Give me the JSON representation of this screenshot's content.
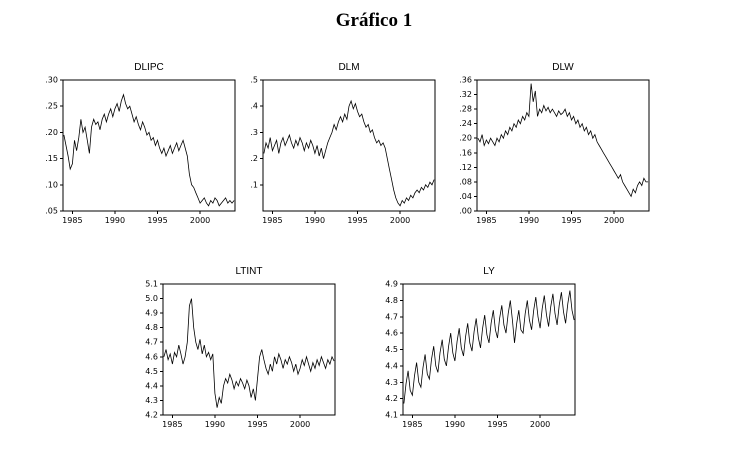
{
  "page": {
    "title": "Gráfico 1"
  },
  "chart_data": [
    {
      "id": "dlipc",
      "type": "line",
      "title": "DLIPC",
      "xlabel": "",
      "ylabel": "",
      "x_start": 1984.0,
      "x_step": 0.25,
      "xlim": [
        1983.9,
        2004.1
      ],
      "ylim": [
        0.05,
        0.3
      ],
      "ytick_vals": [
        0.05,
        0.1,
        0.15,
        0.2,
        0.25,
        0.3
      ],
      "ytick_labels": [
        ".05",
        ".10",
        ".15",
        ".20",
        ".25",
        ".30"
      ],
      "xtick_vals": [
        1985,
        1990,
        1995,
        2000
      ],
      "xtick_labels": [
        "1985",
        "1990",
        "1995",
        "2000"
      ],
      "values": [
        0.195,
        0.175,
        0.155,
        0.13,
        0.14,
        0.185,
        0.165,
        0.19,
        0.225,
        0.2,
        0.21,
        0.185,
        0.16,
        0.21,
        0.225,
        0.215,
        0.22,
        0.205,
        0.225,
        0.235,
        0.22,
        0.235,
        0.245,
        0.23,
        0.245,
        0.255,
        0.24,
        0.26,
        0.272,
        0.255,
        0.245,
        0.25,
        0.235,
        0.22,
        0.23,
        0.215,
        0.205,
        0.22,
        0.21,
        0.195,
        0.2,
        0.185,
        0.19,
        0.175,
        0.185,
        0.17,
        0.16,
        0.17,
        0.155,
        0.165,
        0.175,
        0.16,
        0.17,
        0.18,
        0.165,
        0.175,
        0.185,
        0.17,
        0.155,
        0.12,
        0.1,
        0.095,
        0.085,
        0.075,
        0.065,
        0.07,
        0.075,
        0.065,
        0.06,
        0.07,
        0.065,
        0.075,
        0.07,
        0.06,
        0.065,
        0.07,
        0.075,
        0.065,
        0.07,
        0.065,
        0.07
      ]
    },
    {
      "id": "dlm",
      "type": "line",
      "title": "DLM",
      "xlabel": "",
      "ylabel": "",
      "x_start": 1984.0,
      "x_step": 0.25,
      "xlim": [
        1983.9,
        2004.1
      ],
      "ylim": [
        0.0,
        0.5
      ],
      "ytick_vals": [
        0.1,
        0.2,
        0.3,
        0.4,
        0.5
      ],
      "ytick_labels": [
        ".1",
        ".2",
        ".3",
        ".4",
        ".5"
      ],
      "xtick_vals": [
        1985,
        1990,
        1995,
        2000
      ],
      "xtick_labels": [
        "1985",
        "1990",
        "1995",
        "2000"
      ],
      "values": [
        0.22,
        0.26,
        0.24,
        0.28,
        0.23,
        0.25,
        0.27,
        0.22,
        0.26,
        0.28,
        0.25,
        0.27,
        0.29,
        0.26,
        0.24,
        0.27,
        0.25,
        0.28,
        0.26,
        0.23,
        0.26,
        0.24,
        0.27,
        0.25,
        0.22,
        0.25,
        0.21,
        0.24,
        0.2,
        0.23,
        0.26,
        0.28,
        0.3,
        0.33,
        0.31,
        0.34,
        0.36,
        0.34,
        0.37,
        0.35,
        0.4,
        0.42,
        0.39,
        0.41,
        0.38,
        0.36,
        0.37,
        0.34,
        0.32,
        0.33,
        0.3,
        0.31,
        0.28,
        0.26,
        0.27,
        0.25,
        0.26,
        0.24,
        0.2,
        0.16,
        0.12,
        0.08,
        0.05,
        0.03,
        0.02,
        0.04,
        0.03,
        0.05,
        0.04,
        0.06,
        0.05,
        0.07,
        0.08,
        0.07,
        0.09,
        0.08,
        0.1,
        0.09,
        0.11,
        0.1,
        0.12
      ]
    },
    {
      "id": "dlw",
      "type": "line",
      "title": "DLW",
      "xlabel": "",
      "ylabel": "",
      "x_start": 1984.0,
      "x_step": 0.25,
      "xlim": [
        1983.9,
        2004.1
      ],
      "ylim": [
        0.0,
        0.36
      ],
      "ytick_vals": [
        0.0,
        0.04,
        0.08,
        0.12,
        0.16,
        0.2,
        0.24,
        0.28,
        0.32,
        0.36
      ],
      "ytick_labels": [
        ".00",
        ".04",
        ".08",
        ".12",
        ".16",
        ".20",
        ".24",
        ".28",
        ".32",
        ".36"
      ],
      "xtick_vals": [
        1985,
        1990,
        1995,
        2000
      ],
      "xtick_labels": [
        "1985",
        "1990",
        "1995",
        "2000"
      ],
      "values": [
        0.2,
        0.19,
        0.21,
        0.18,
        0.195,
        0.185,
        0.2,
        0.19,
        0.18,
        0.2,
        0.19,
        0.21,
        0.2,
        0.22,
        0.21,
        0.23,
        0.22,
        0.24,
        0.23,
        0.25,
        0.24,
        0.26,
        0.25,
        0.27,
        0.26,
        0.35,
        0.3,
        0.33,
        0.26,
        0.28,
        0.27,
        0.29,
        0.275,
        0.285,
        0.27,
        0.28,
        0.27,
        0.26,
        0.275,
        0.265,
        0.27,
        0.28,
        0.26,
        0.27,
        0.25,
        0.26,
        0.24,
        0.25,
        0.23,
        0.24,
        0.22,
        0.23,
        0.21,
        0.22,
        0.2,
        0.21,
        0.19,
        0.18,
        0.17,
        0.16,
        0.15,
        0.14,
        0.13,
        0.12,
        0.11,
        0.1,
        0.09,
        0.1,
        0.08,
        0.07,
        0.06,
        0.05,
        0.04,
        0.06,
        0.05,
        0.07,
        0.08,
        0.07,
        0.09,
        0.08,
        0.08
      ]
    },
    {
      "id": "ltint",
      "type": "line",
      "title": "LTINT",
      "xlabel": "",
      "ylabel": "",
      "x_start": 1984.0,
      "x_step": 0.25,
      "xlim": [
        1983.9,
        2004.1
      ],
      "ylim": [
        4.2,
        5.1
      ],
      "ytick_vals": [
        4.2,
        4.3,
        4.4,
        4.5,
        4.6,
        4.7,
        4.8,
        4.9,
        5.0,
        5.1
      ],
      "ytick_labels": [
        "4.2",
        "4.3",
        "4.4",
        "4.5",
        "4.6",
        "4.7",
        "4.8",
        "4.9",
        "5.0",
        "5.1"
      ],
      "xtick_vals": [
        1985,
        1990,
        1995,
        2000
      ],
      "xtick_labels": [
        "1985",
        "1990",
        "1995",
        "2000"
      ],
      "values": [
        4.6,
        4.65,
        4.58,
        4.62,
        4.55,
        4.63,
        4.6,
        4.68,
        4.62,
        4.55,
        4.6,
        4.7,
        4.95,
        5.0,
        4.8,
        4.7,
        4.65,
        4.72,
        4.62,
        4.68,
        4.6,
        4.63,
        4.58,
        4.62,
        4.35,
        4.25,
        4.32,
        4.28,
        4.4,
        4.45,
        4.42,
        4.48,
        4.44,
        4.38,
        4.43,
        4.4,
        4.45,
        4.42,
        4.38,
        4.44,
        4.4,
        4.32,
        4.38,
        4.3,
        4.45,
        4.6,
        4.65,
        4.58,
        4.52,
        4.48,
        4.55,
        4.5,
        4.6,
        4.55,
        4.62,
        4.58,
        4.52,
        4.58,
        4.55,
        4.6,
        4.56,
        4.5,
        4.55,
        4.48,
        4.52,
        4.58,
        4.54,
        4.6,
        4.55,
        4.5,
        4.56,
        4.52,
        4.58,
        4.54,
        4.6,
        4.56,
        4.52,
        4.58,
        4.55,
        4.6,
        4.57
      ]
    },
    {
      "id": "ly",
      "type": "line",
      "title": "LY",
      "xlabel": "",
      "ylabel": "",
      "x_start": 1984.0,
      "x_step": 0.25,
      "xlim": [
        1983.9,
        2004.1
      ],
      "ylim": [
        4.1,
        4.9
      ],
      "ytick_vals": [
        4.1,
        4.2,
        4.3,
        4.4,
        4.5,
        4.6,
        4.7,
        4.8,
        4.9
      ],
      "ytick_labels": [
        "4.1",
        "4.2",
        "4.3",
        "4.4",
        "4.5",
        "4.6",
        "4.7",
        "4.8",
        "4.9"
      ],
      "xtick_vals": [
        1985,
        1990,
        1995,
        2000
      ],
      "xtick_labels": [
        "1985",
        "1990",
        "1995",
        "2000"
      ],
      "values": [
        4.17,
        4.29,
        4.37,
        4.25,
        4.22,
        4.34,
        4.42,
        4.3,
        4.27,
        4.39,
        4.47,
        4.35,
        4.32,
        4.44,
        4.52,
        4.4,
        4.36,
        4.48,
        4.56,
        4.44,
        4.4,
        4.52,
        4.6,
        4.48,
        4.43,
        4.55,
        4.63,
        4.51,
        4.46,
        4.58,
        4.66,
        4.54,
        4.49,
        4.61,
        4.69,
        4.57,
        4.51,
        4.63,
        4.71,
        4.59,
        4.54,
        4.66,
        4.74,
        4.62,
        4.57,
        4.69,
        4.77,
        4.65,
        4.6,
        4.72,
        4.8,
        4.68,
        4.54,
        4.66,
        4.74,
        4.62,
        4.6,
        4.72,
        4.8,
        4.68,
        4.62,
        4.74,
        4.82,
        4.7,
        4.63,
        4.75,
        4.83,
        4.71,
        4.64,
        4.76,
        4.84,
        4.72,
        4.65,
        4.77,
        4.85,
        4.73,
        4.66,
        4.78,
        4.86,
        4.74,
        4.68
      ]
    }
  ]
}
